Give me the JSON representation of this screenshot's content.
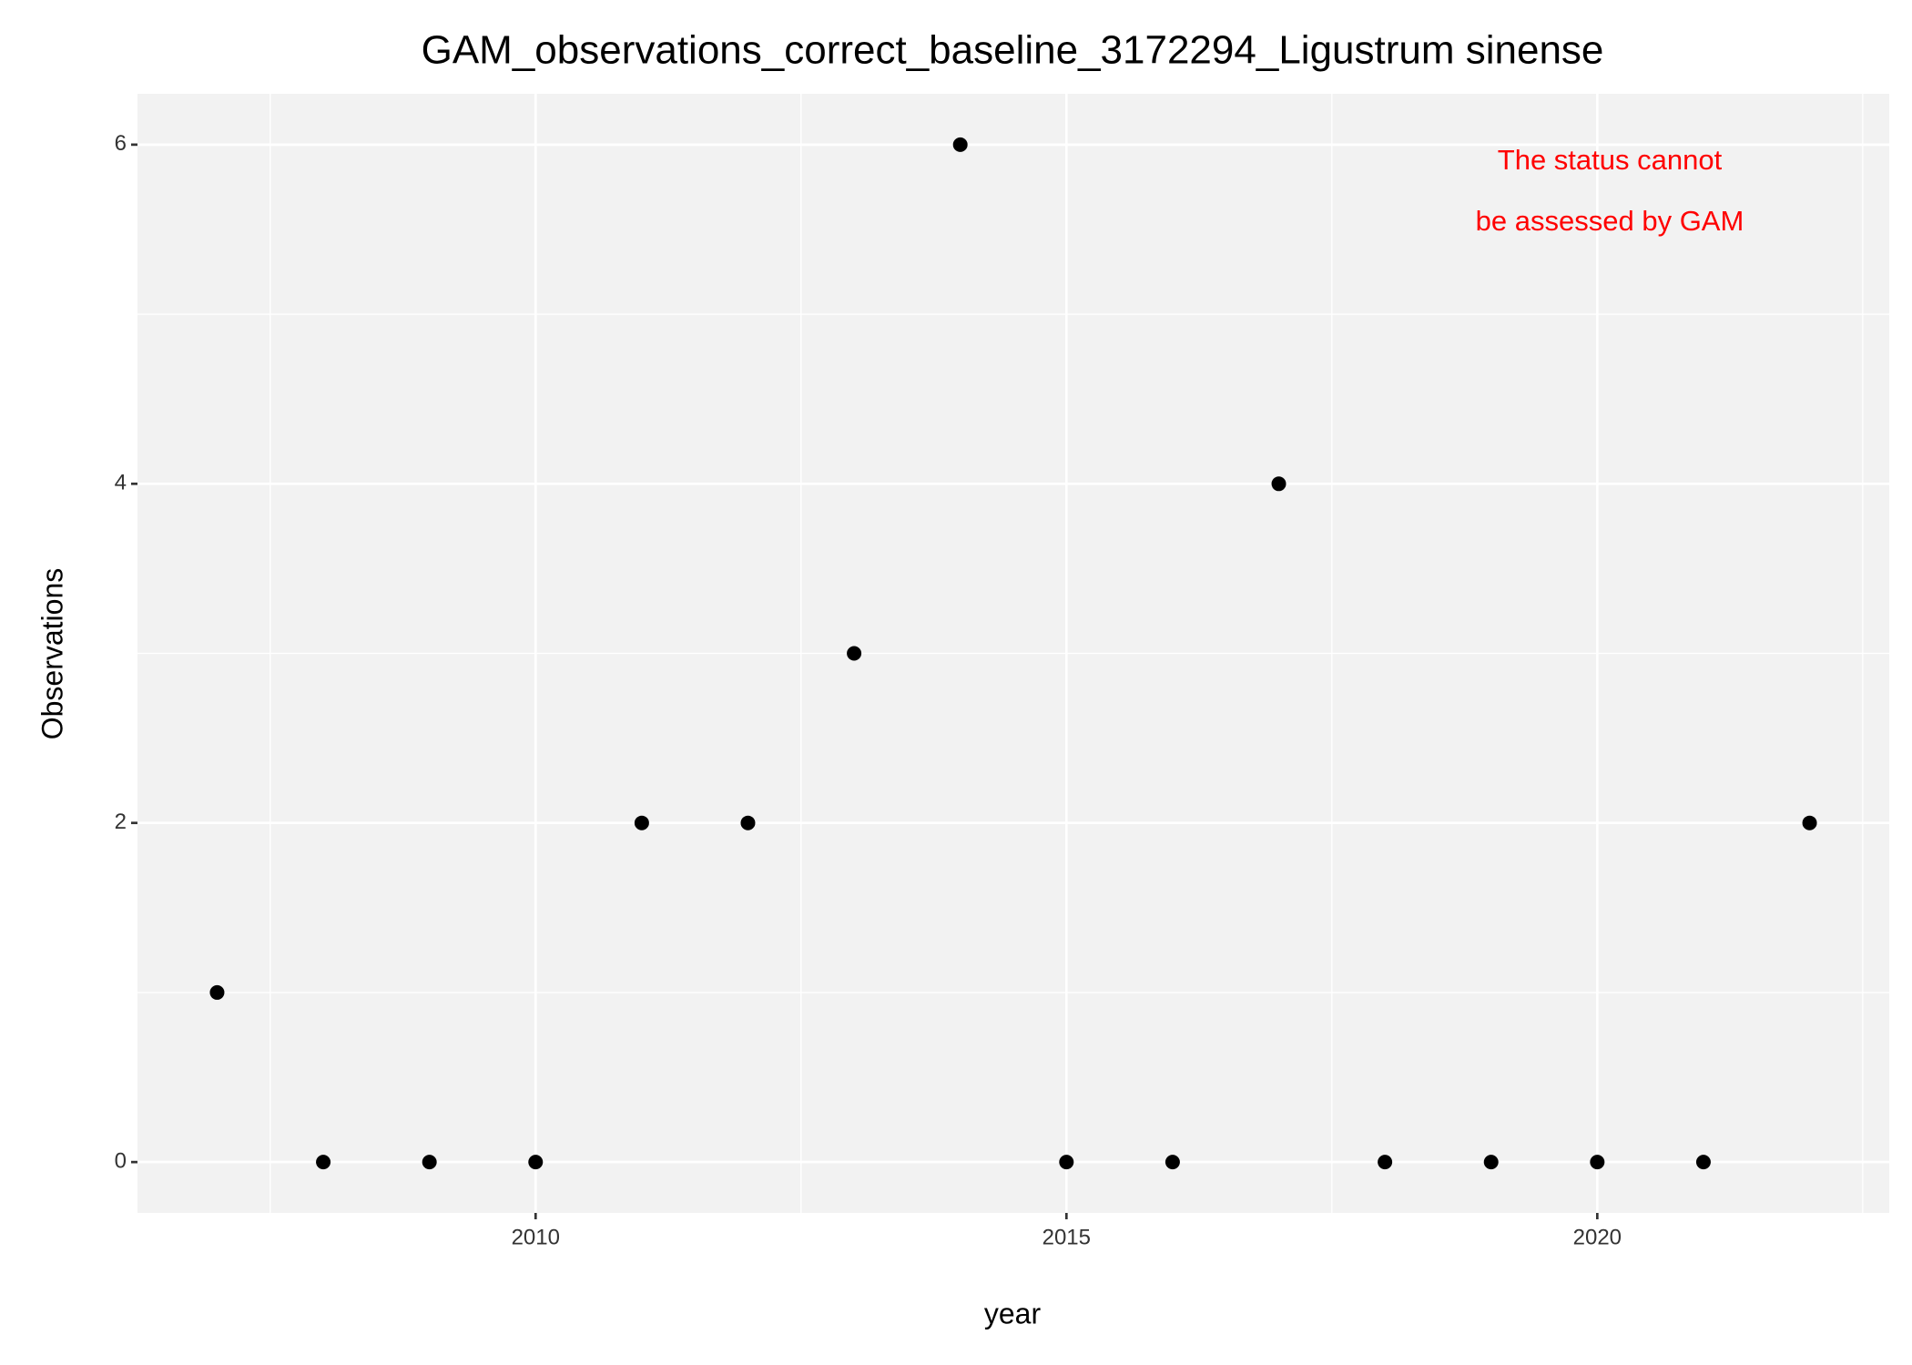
{
  "chart_data": {
    "type": "scatter",
    "title": "GAM_observations_correct_baseline_3172294_Ligustrum sinense",
    "x_label": "year",
    "y_label": "Observations",
    "annotation": [
      "The status cannot",
      "be assessed by GAM"
    ],
    "annotation_color": "#ff0000",
    "x": [
      2007,
      2008,
      2009,
      2010,
      2011,
      2012,
      2013,
      2014,
      2015,
      2016,
      2017,
      2018,
      2019,
      2020,
      2021,
      2022
    ],
    "values": [
      1,
      0,
      0,
      0,
      2,
      2,
      3,
      6,
      0,
      0,
      4,
      0,
      0,
      0,
      0,
      2
    ],
    "color": "#000000",
    "xlim": [
      2006.25,
      2022.75
    ],
    "xticks": [
      2010,
      2015,
      2020
    ],
    "ylim": [
      -0.3,
      6.3
    ],
    "yticks": [
      0,
      2,
      4,
      6
    ],
    "grid": true
  }
}
